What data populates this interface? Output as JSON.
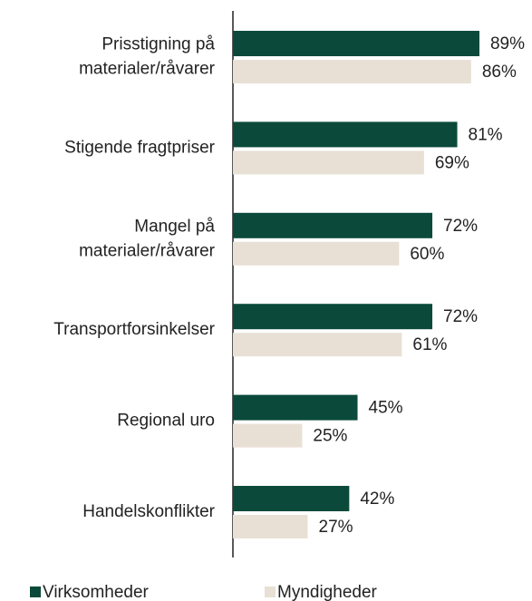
{
  "chart_data": {
    "type": "bar",
    "orientation": "horizontal",
    "categories": [
      "Prisstigning på\nmaterialer/råvarer",
      "Stigende fragtpriser",
      "Mangel på\nmaterialer/råvarer",
      "Transportforsinkelser",
      "Regional uro",
      "Handelskonflikter"
    ],
    "series": [
      {
        "name": "Virksomheder",
        "color": "#0b4a3a",
        "values": [
          89,
          81,
          72,
          72,
          45,
          42
        ],
        "value_labels": [
          "89%",
          "81%",
          "72%",
          "72%",
          "45%",
          "42%"
        ]
      },
      {
        "name": "Myndigheder",
        "color": "#e8e0d5",
        "values": [
          86,
          69,
          60,
          61,
          25,
          27
        ],
        "value_labels": [
          "86%",
          "69%",
          "60%",
          "61%",
          "25%",
          "27%"
        ]
      }
    ],
    "xlim": [
      0,
      100
    ],
    "legend": "bottom"
  }
}
